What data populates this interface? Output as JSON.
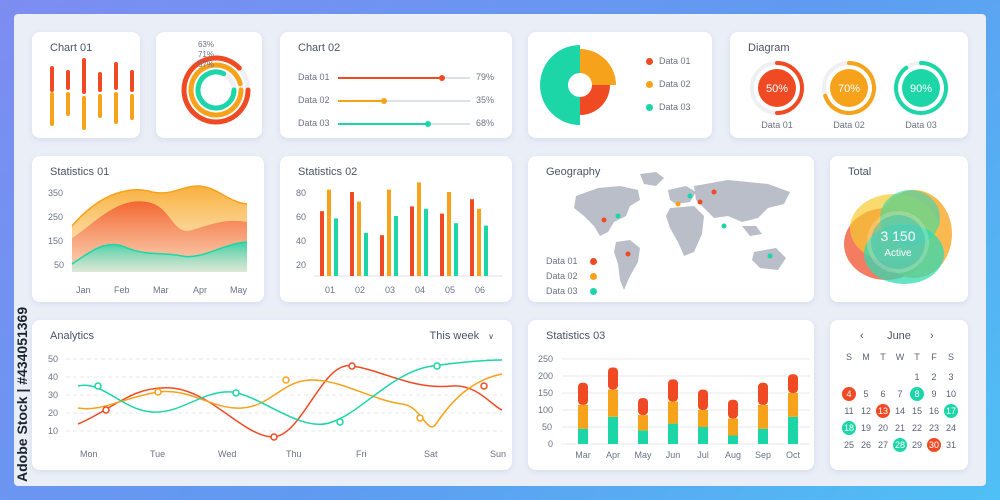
{
  "colors": {
    "red": "#f04a24",
    "orange": "#f7a21b",
    "teal": "#1cd6a8",
    "grey": "#c9ced8"
  },
  "chart01": {
    "title": "Chart 01"
  },
  "rings": {
    "labels": [
      "63%",
      "71%",
      "57%"
    ],
    "values": [
      63,
      71,
      57
    ]
  },
  "chart02": {
    "title": "Chart 02",
    "rows": [
      {
        "label": "Data 01",
        "value": 79,
        "value_text": "79%"
      },
      {
        "label": "Data 02",
        "value": 35,
        "value_text": "35%"
      },
      {
        "label": "Data 03",
        "value": 68,
        "value_text": "68%"
      }
    ]
  },
  "pie": {
    "legend": [
      "Data 01",
      "Data 02",
      "Data 03"
    ]
  },
  "diagram": {
    "title": "Diagram",
    "items": [
      {
        "value": 50,
        "text": "50%",
        "label": "Data 01"
      },
      {
        "value": 70,
        "text": "70%",
        "label": "Data 02"
      },
      {
        "value": 90,
        "text": "90%",
        "label": "Data 03"
      }
    ]
  },
  "stats01": {
    "title": "Statistics 01",
    "yticks": [
      "350",
      "250",
      "150",
      "50"
    ],
    "months": [
      "Jan",
      "Feb",
      "Mar",
      "Apr",
      "May"
    ]
  },
  "stats02": {
    "title": "Statistics 02",
    "yticks": [
      "80",
      "60",
      "40",
      "20"
    ],
    "categories": [
      "01",
      "02",
      "03",
      "04",
      "05",
      "06"
    ]
  },
  "geography": {
    "title": "Geography",
    "legend": [
      "Data 01",
      "Data 02",
      "Data 03"
    ]
  },
  "total": {
    "title": "Total",
    "value": "3 150",
    "label": "Active"
  },
  "analytics": {
    "title": "Analytics",
    "period": "This week",
    "yticks": [
      "50",
      "40",
      "30",
      "20",
      "10"
    ],
    "days": [
      "Mon",
      "Tue",
      "Wed",
      "Thu",
      "Fri",
      "Sat",
      "Sun"
    ]
  },
  "stats03": {
    "title": "Statistics 03",
    "yticks": [
      "250",
      "200",
      "150",
      "100",
      "50",
      "0"
    ],
    "months": [
      "Mar",
      "Apr",
      "May",
      "Jun",
      "Jul",
      "Aug",
      "Sep",
      "Oct"
    ]
  },
  "calendar": {
    "month": "June",
    "weekdays": [
      "S",
      "M",
      "T",
      "W",
      "T",
      "F",
      "S"
    ],
    "days": [
      "1",
      "2",
      "3",
      "4",
      "5",
      "6",
      "7",
      "8",
      "9",
      "10",
      "11",
      "12",
      "13",
      "14",
      "15",
      "16",
      "17",
      "18",
      "19",
      "20",
      "21",
      "22",
      "23",
      "24",
      "25",
      "26",
      "27",
      "28",
      "29",
      "30",
      "31"
    ]
  },
  "watermark": "Adobe Stock | #434051369"
}
